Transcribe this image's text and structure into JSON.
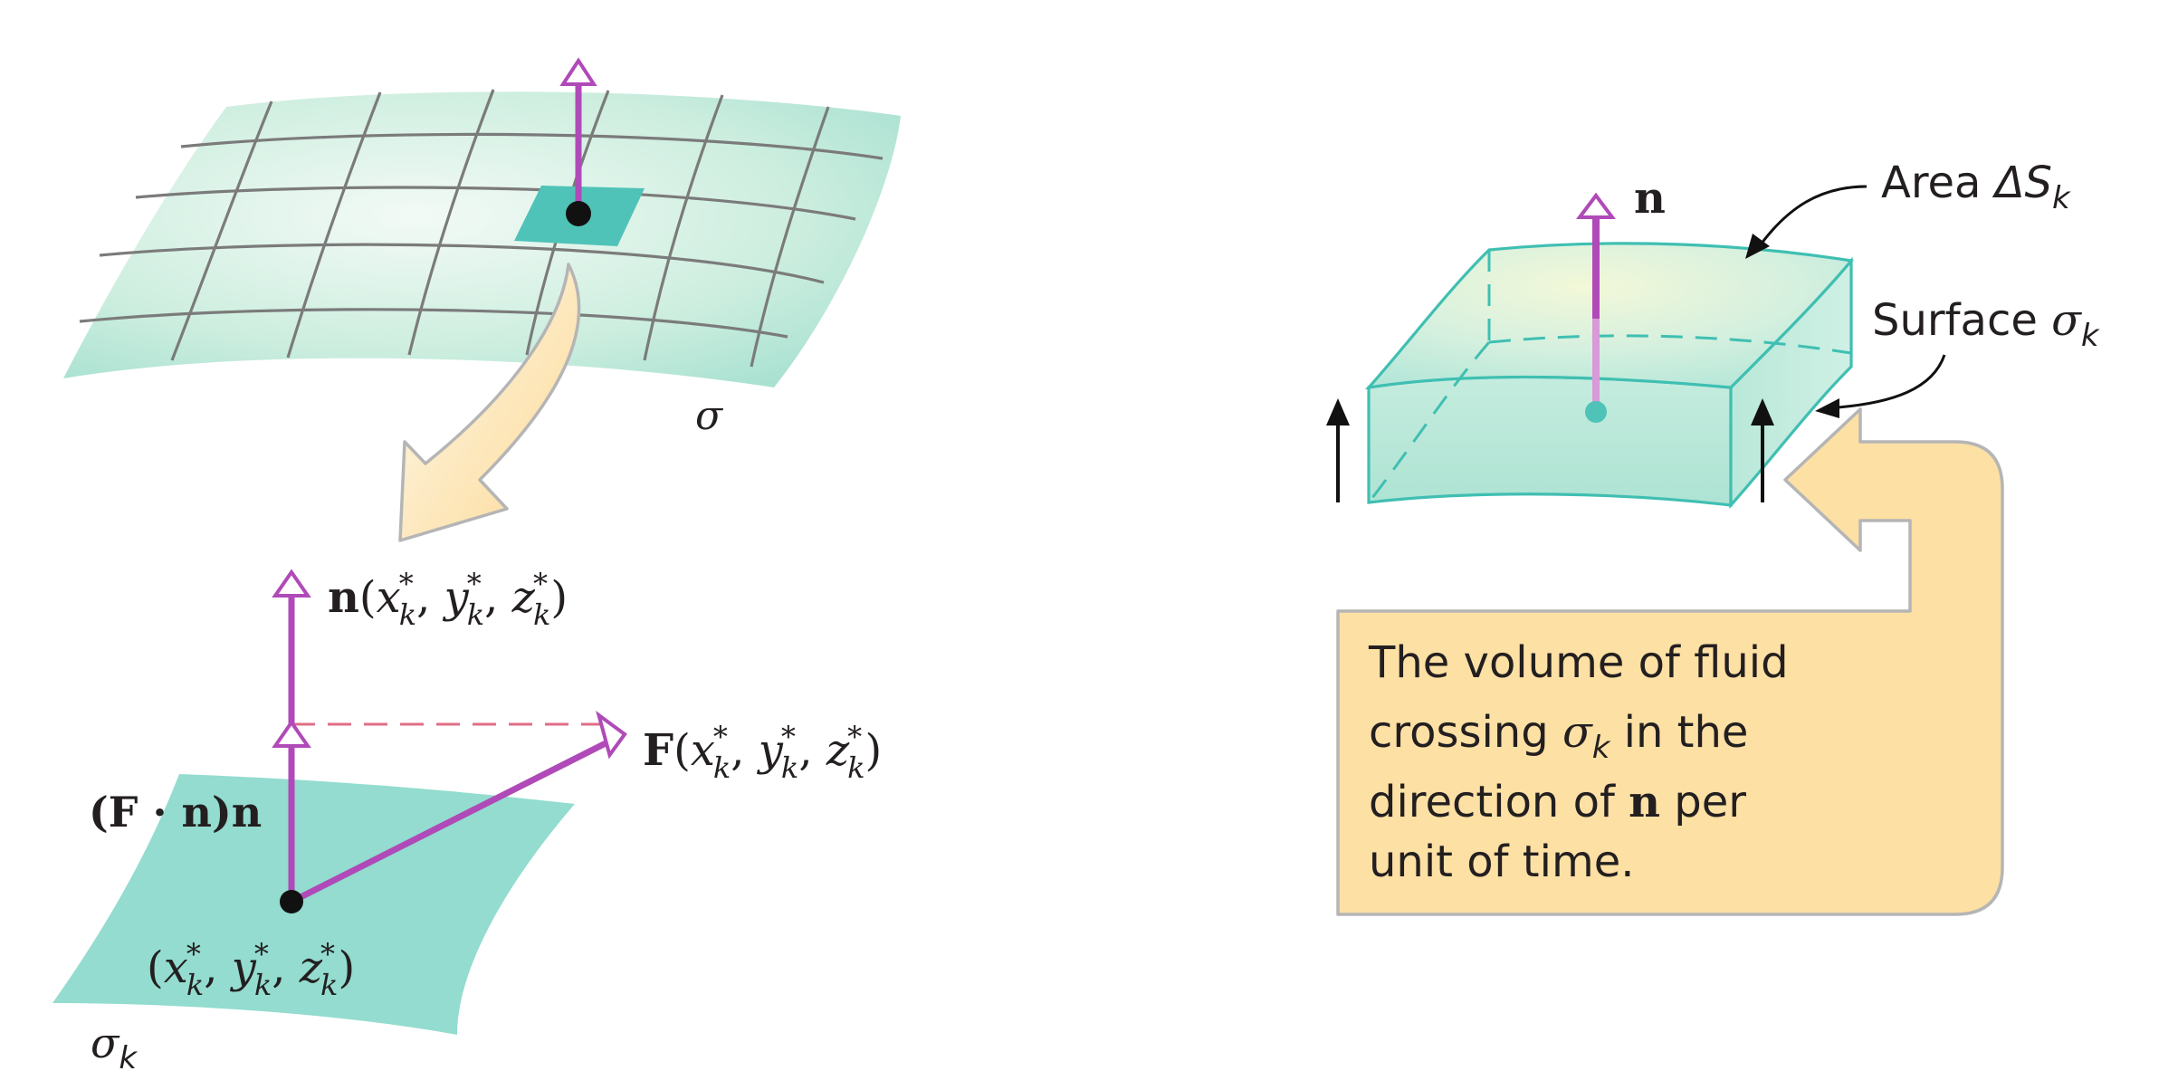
{
  "colors": {
    "surface_light": "#eaf6ef",
    "surface_mid": "#bfe6d8",
    "surface_dark": "#9fdccd",
    "patch": "#4fc3b8",
    "patch_flat": "#93dccf",
    "grid": "#7b7b7b",
    "vector": "#b04ab8",
    "vector_light": "#d89ad8",
    "dashed": "#e06d86",
    "callout_fill": "#fde0a4",
    "callout_stroke": "#b5b5b5",
    "ink": "#231f20",
    "box_edge": "#3fbfb2"
  },
  "icons": {
    "normal_arrowhead": "open-triangle-arrowhead",
    "flow_arrow": "solid-arrow-up",
    "magnify_arrow": "curved-block-arrow"
  },
  "left_panel": {
    "surface_label": "σ",
    "patch_label": {
      "base": "σ",
      "sub": "k"
    },
    "normal_label": {
      "bold": "n",
      "open": "(",
      "x": "x",
      "y": "y",
      "z": "z",
      "sub": "k",
      "sup": "*",
      "sep": ", ",
      "close": ")"
    },
    "force_label": {
      "bold": "F",
      "open": "(",
      "x": "x",
      "y": "y",
      "z": "z",
      "sub": "k",
      "sup": "*",
      "sep": ", ",
      "close": ")"
    },
    "projection_label": {
      "open": "(",
      "F": "F",
      "dot": " · ",
      "n": "n",
      "close": ")",
      "n2": "n"
    },
    "point_label": {
      "open": "(",
      "x": "x",
      "y": "y",
      "z": "z",
      "sub": "k",
      "sup": "*",
      "sep": ", ",
      "close": ")"
    }
  },
  "right_panel": {
    "normal_label": "n",
    "area_label": {
      "text": "Area ",
      "delta": "ΔS",
      "sub": "k"
    },
    "surface_label": {
      "text": "Surface ",
      "sigma": "σ",
      "sub": "k"
    },
    "callout": {
      "line1": "The volume of fluid",
      "line2_a": "crossing ",
      "line2_sigma": "σ",
      "line2_sub": "k",
      "line2_b": " in the",
      "line3_a": "direction of ",
      "line3_n": "n",
      "line3_b": " per",
      "line4": "unit of time."
    }
  }
}
